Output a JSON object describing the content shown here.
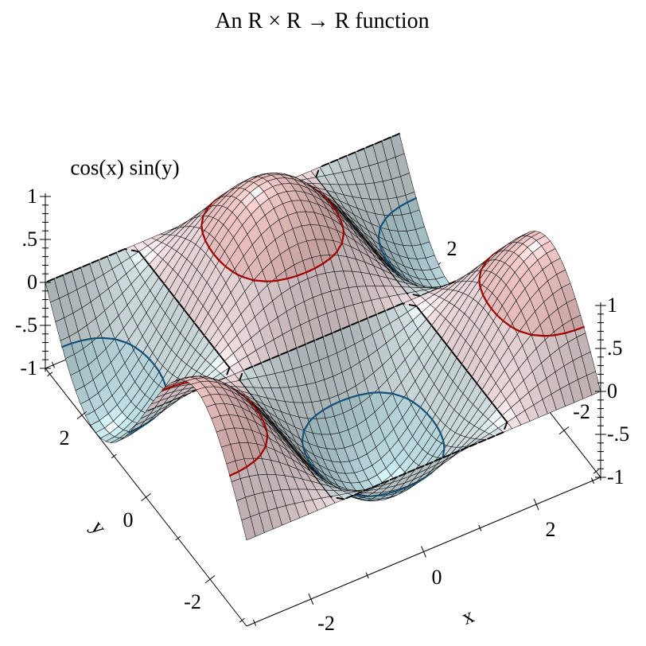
{
  "chart_data": {
    "type": "3d-surface",
    "title": "An R × R → R function",
    "z_label": "cos(x) sin(y)",
    "x_label": "x",
    "y_label": "y",
    "function": "z = cos(x) · sin(y)",
    "x_range": [
      -3.141592653589793,
      3.141592653589793
    ],
    "y_range": [
      -3.141592653589793,
      3.141592653589793
    ],
    "z_range": [
      -1,
      1
    ],
    "samples": 41,
    "view": {
      "azimuth_deg": 30,
      "altitude_deg": 60
    },
    "x_axis": {
      "major_ticks": [
        -2,
        0,
        2
      ],
      "major_labels": [
        "-2",
        "0",
        "2"
      ],
      "minor_ticks": [
        -3,
        -1,
        1,
        3
      ]
    },
    "y_axis": {
      "major_ticks": [
        2,
        0,
        -2
      ],
      "major_labels": [
        "2",
        "0",
        "-2"
      ],
      "minor_ticks": [
        -3,
        -1,
        1,
        3
      ]
    },
    "z_axis": {
      "major_ticks": [
        1,
        0.5,
        0,
        -0.5,
        -1
      ],
      "major_labels": [
        "1",
        ".5",
        "0",
        "-.5",
        "-1"
      ],
      "minor_step": 0.1
    },
    "rear_y_edge": {
      "visible_ticks": [
        2,
        -2
      ],
      "visible_labels": [
        "2",
        "-2"
      ]
    },
    "contour_levels": [
      {
        "level": 0.5,
        "color": "#a00000",
        "style": "solid"
      },
      {
        "level": 0,
        "color": "#000000",
        "style": "dashed"
      },
      {
        "level": -0.5,
        "color": "#155078",
        "style": "solid"
      }
    ],
    "bands": [
      {
        "range": [
          -1,
          -0.5
        ],
        "color": "#c2e2e8"
      },
      {
        "range": [
          -0.5,
          0
        ],
        "color": "#d7e3e7"
      },
      {
        "range": [
          0,
          0.5
        ],
        "color": "#f3e0e3"
      },
      {
        "range": [
          0.5,
          1
        ],
        "color": "#f5c9c9"
      }
    ],
    "grid_color": "#000000",
    "axis_color": "#000000",
    "background": "#ffffff",
    "text_color": "#000000"
  }
}
